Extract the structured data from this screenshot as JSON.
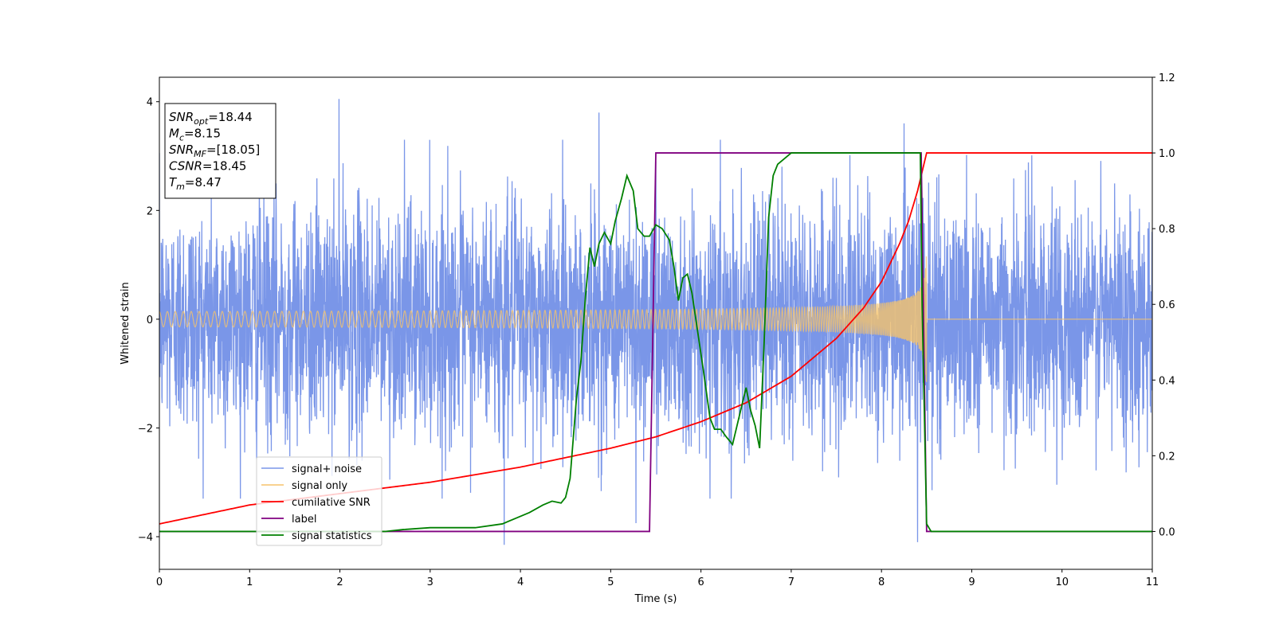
{
  "chart_data": {
    "type": "line",
    "xlabel": "Time (s)",
    "ylabel": "Whitened strain",
    "xlim": [
      0,
      11
    ],
    "ylim": [
      -4.6,
      4.45
    ],
    "y2lim": [
      -0.1,
      1.2
    ],
    "xticks": [
      "0",
      "1",
      "2",
      "3",
      "4",
      "5",
      "6",
      "7",
      "8",
      "9",
      "10",
      "11"
    ],
    "xtick_values": [
      0,
      1,
      2,
      3,
      4,
      5,
      6,
      7,
      8,
      9,
      10,
      11
    ],
    "yticks": [
      "−4",
      "−2",
      "0",
      "2",
      "4"
    ],
    "ytick_values": [
      -4,
      -2,
      0,
      2,
      4
    ],
    "y2ticks": [
      "0.0",
      "0.2",
      "0.4",
      "0.6",
      "0.8",
      "1.0",
      "1.2"
    ],
    "y2tick_values": [
      0.0,
      0.2,
      0.4,
      0.6,
      0.8,
      1.0,
      1.2
    ],
    "legend_position": "lower-left",
    "annotation": {
      "lines": [
        {
          "sym": "SNR",
          "sub": "opt",
          "val": "=18.44"
        },
        {
          "sym": "M",
          "sub": "c",
          "val": "=8.15"
        },
        {
          "sym": "SNR",
          "sub": "MF",
          "val": "=[18.05]"
        },
        {
          "sym": "CSNR",
          "sub": "",
          "val": "=18.45"
        },
        {
          "sym": "T",
          "sub": "m",
          "val": "=8.47"
        }
      ]
    },
    "series": [
      {
        "name": "signal+ noise",
        "axis": "left",
        "color": "#7a96e8",
        "description_of_values": "noise",
        "noise_sigma": 1.0,
        "peaks": [
          [
            1.99,
            4.05
          ],
          [
            3.82,
            -4.15
          ],
          [
            4.87,
            3.8
          ],
          [
            5.28,
            -3.75
          ],
          [
            8.25,
            3.6
          ],
          [
            8.4,
            -4.1
          ],
          [
            5.5,
            2.9
          ],
          [
            6.1,
            -3.3
          ]
        ]
      },
      {
        "name": "signal only",
        "axis": "left",
        "color": "#f5c36b",
        "merge_time": 8.5,
        "amplitude_start": 0.1,
        "amplitude_end": 1.3
      },
      {
        "name": "cumilative SNR",
        "axis": "right",
        "color": "#ff0000",
        "x": [
          0,
          1,
          2,
          3,
          4,
          5,
          5.5,
          6,
          6.5,
          7,
          7.5,
          7.8,
          8.0,
          8.2,
          8.3,
          8.4,
          8.45,
          8.5,
          11
        ],
        "y": [
          0.02,
          0.07,
          0.1,
          0.13,
          0.17,
          0.22,
          0.25,
          0.29,
          0.34,
          0.41,
          0.51,
          0.59,
          0.66,
          0.76,
          0.82,
          0.9,
          0.95,
          1.0,
          1.0
        ]
      },
      {
        "name": "label",
        "axis": "right",
        "color": "#800080",
        "x": [
          0,
          5.43,
          5.5,
          8.44,
          8.5,
          11
        ],
        "y": [
          0,
          0,
          1,
          1,
          0,
          0
        ]
      },
      {
        "name": "signal statistics",
        "axis": "right",
        "color": "#008000",
        "x": [
          0,
          2.5,
          2.7,
          3.0,
          3.5,
          3.8,
          3.95,
          4.1,
          4.25,
          4.35,
          4.45,
          4.5,
          4.55,
          4.62,
          4.67,
          4.72,
          4.77,
          4.82,
          4.87,
          4.93,
          5.0,
          5.05,
          5.12,
          5.18,
          5.25,
          5.3,
          5.37,
          5.43,
          5.5,
          5.57,
          5.65,
          5.7,
          5.75,
          5.8,
          5.85,
          5.9,
          5.95,
          6.03,
          6.1,
          6.15,
          6.22,
          6.28,
          6.35,
          6.42,
          6.5,
          6.55,
          6.6,
          6.65,
          6.7,
          6.75,
          6.8,
          6.85,
          6.9,
          6.95,
          7.0,
          7.1,
          7.3,
          7.5,
          7.7,
          8.0,
          8.2,
          8.43,
          8.45,
          8.5,
          8.55,
          11
        ],
        "y": [
          0,
          0,
          0.005,
          0.01,
          0.01,
          0.02,
          0.035,
          0.05,
          0.07,
          0.08,
          0.075,
          0.09,
          0.14,
          0.35,
          0.45,
          0.62,
          0.75,
          0.7,
          0.76,
          0.79,
          0.76,
          0.82,
          0.88,
          0.94,
          0.9,
          0.8,
          0.78,
          0.78,
          0.81,
          0.8,
          0.77,
          0.7,
          0.61,
          0.67,
          0.68,
          0.63,
          0.55,
          0.42,
          0.3,
          0.27,
          0.27,
          0.25,
          0.23,
          0.3,
          0.38,
          0.32,
          0.28,
          0.22,
          0.5,
          0.83,
          0.94,
          0.97,
          0.98,
          0.99,
          1.0,
          1.0,
          1.0,
          1.0,
          1.0,
          1.0,
          1.0,
          1.0,
          0.6,
          0.02,
          0.0,
          0.0
        ]
      }
    ]
  }
}
